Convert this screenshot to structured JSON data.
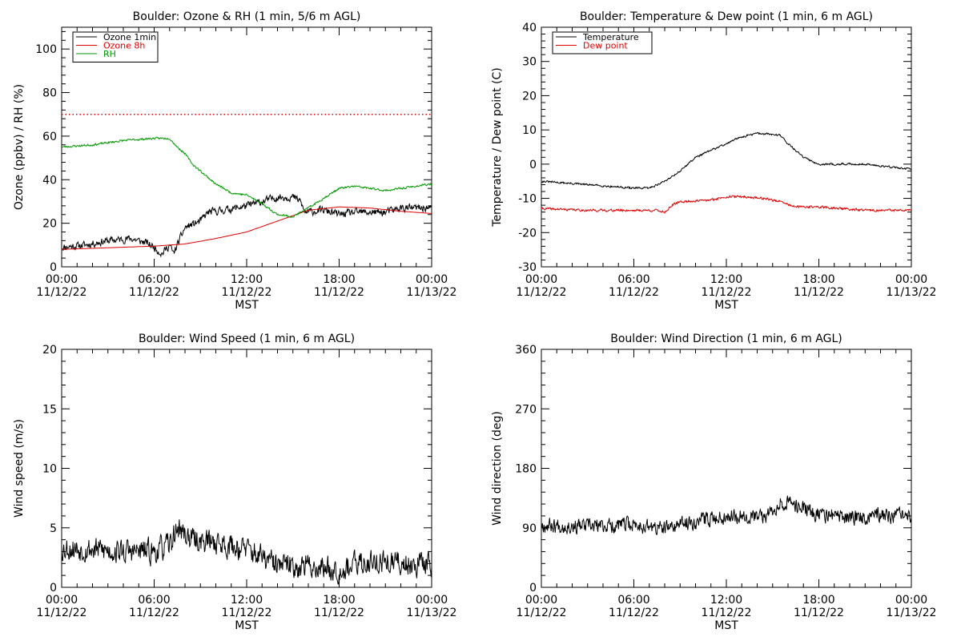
{
  "chart_data": [
    {
      "type": "line",
      "title": "Boulder: Ozone & RH (1 min, 5/6 m AGL)",
      "xlabel": "MST",
      "ylabel": "Ozone (ppbv) / RH (%)",
      "xlim": [
        "11/12/22 00:00",
        "11/13/22 00:00"
      ],
      "ylim": [
        0,
        110
      ],
      "xticks": [
        {
          "time": "00:00",
          "date": "11/12/22"
        },
        {
          "time": "06:00",
          "date": "11/12/22"
        },
        {
          "time": "12:00",
          "date": "11/12/22"
        },
        {
          "time": "18:00",
          "date": "11/12/22"
        },
        {
          "time": "00:00",
          "date": "11/13/22"
        }
      ],
      "yticks": [
        0,
        20,
        40,
        60,
        80,
        100
      ],
      "legend_position": "top-left",
      "reference_line": {
        "y": 70,
        "color": "#dd0000",
        "style": "dotted"
      },
      "series": [
        {
          "name": "Ozone 1min",
          "color": "#000000",
          "noise": 1.5,
          "seed": 11,
          "points": [
            [
              "00:00",
              9
            ],
            [
              "01:30",
              10
            ],
            [
              "03:00",
              12
            ],
            [
              "04:30",
              13
            ],
            [
              "05:30",
              11
            ],
            [
              "06:00",
              9
            ],
            [
              "06:30",
              6
            ],
            [
              "07:00",
              10
            ],
            [
              "07:15",
              6
            ],
            [
              "07:45",
              14
            ],
            [
              "08:00",
              18
            ],
            [
              "09:00",
              21
            ],
            [
              "09:30",
              25
            ],
            [
              "10:30",
              26
            ],
            [
              "12:00",
              28
            ],
            [
              "13:00",
              30
            ],
            [
              "14:00",
              32
            ],
            [
              "15:00",
              32
            ],
            [
              "15:30",
              30
            ],
            [
              "15:45",
              25
            ],
            [
              "17:00",
              26
            ],
            [
              "18:00",
              24
            ],
            [
              "19:00",
              25
            ],
            [
              "21:00",
              25
            ],
            [
              "22:00",
              27
            ],
            [
              "24:00",
              27
            ]
          ]
        },
        {
          "name": "Ozone 8h",
          "color": "#dd0000",
          "noise": 0,
          "seed": 0,
          "points": [
            [
              "00:00",
              8
            ],
            [
              "04:00",
              9
            ],
            [
              "06:00",
              9.5
            ],
            [
              "08:00",
              10.5
            ],
            [
              "10:00",
              13
            ],
            [
              "12:00",
              16
            ],
            [
              "14:00",
              21
            ],
            [
              "16:00",
              26
            ],
            [
              "18:00",
              27.5
            ],
            [
              "20:00",
              27
            ],
            [
              "22:00",
              25.5
            ],
            [
              "24:00",
              24.5
            ]
          ]
        },
        {
          "name": "RH",
          "color": "#009900",
          "noise": 0.4,
          "seed": 23,
          "points": [
            [
              "00:00",
              55
            ],
            [
              "02:00",
              56
            ],
            [
              "04:00",
              58
            ],
            [
              "06:00",
              59
            ],
            [
              "07:00",
              59
            ],
            [
              "07:30",
              55
            ],
            [
              "08:00",
              52
            ],
            [
              "08:30",
              47
            ],
            [
              "10:00",
              38
            ],
            [
              "11:00",
              34
            ],
            [
              "12:00",
              33
            ],
            [
              "13:00",
              29
            ],
            [
              "14:00",
              24
            ],
            [
              "15:00",
              23
            ],
            [
              "16:00",
              27
            ],
            [
              "18:00",
              36
            ],
            [
              "19:00",
              37
            ],
            [
              "20:00",
              36
            ],
            [
              "21:00",
              35
            ],
            [
              "22:00",
              36
            ],
            [
              "24:00",
              38
            ]
          ]
        }
      ]
    },
    {
      "type": "line",
      "title": "Boulder: Temperature & Dew point (1 min, 6 m AGL)",
      "xlabel": "MST",
      "ylabel": "Temperature / Dew point (C)",
      "xlim": [
        "11/12/22 00:00",
        "11/13/22 00:00"
      ],
      "ylim": [
        -30,
        40
      ],
      "xticks": [
        {
          "time": "00:00",
          "date": "11/12/22"
        },
        {
          "time": "06:00",
          "date": "11/12/22"
        },
        {
          "time": "12:00",
          "date": "11/12/22"
        },
        {
          "time": "18:00",
          "date": "11/12/22"
        },
        {
          "time": "00:00",
          "date": "11/13/22"
        }
      ],
      "yticks": [
        -30,
        -20,
        -10,
        0,
        10,
        20,
        30,
        40
      ],
      "legend_position": "top-left",
      "series": [
        {
          "name": "Temperature",
          "color": "#000000",
          "noise": 0.25,
          "seed": 31,
          "points": [
            [
              "00:00",
              -5
            ],
            [
              "03:00",
              -6
            ],
            [
              "06:00",
              -7
            ],
            [
              "07:00",
              -7
            ],
            [
              "08:00",
              -5
            ],
            [
              "09:00",
              -2
            ],
            [
              "10:00",
              2
            ],
            [
              "11:00",
              4
            ],
            [
              "12:00",
              6
            ],
            [
              "13:00",
              8
            ],
            [
              "14:00",
              9
            ],
            [
              "15:30",
              8.5
            ],
            [
              "16:00",
              6
            ],
            [
              "17:00",
              2
            ],
            [
              "18:00",
              0
            ],
            [
              "21:00",
              0
            ],
            [
              "22:00",
              -0.5
            ],
            [
              "24:00",
              -1.5
            ]
          ]
        },
        {
          "name": "Dew point",
          "color": "#dd0000",
          "noise": 0.3,
          "seed": 41,
          "points": [
            [
              "00:00",
              -13
            ],
            [
              "03:00",
              -13.5
            ],
            [
              "06:00",
              -13.5
            ],
            [
              "07:30",
              -13.5
            ],
            [
              "08:00",
              -14
            ],
            [
              "08:30",
              -12
            ],
            [
              "09:00",
              -11
            ],
            [
              "11:00",
              -10.5
            ],
            [
              "12:00",
              -9.5
            ],
            [
              "13:00",
              -9.5
            ],
            [
              "14:30",
              -10
            ],
            [
              "15:30",
              -11
            ],
            [
              "16:30",
              -12.5
            ],
            [
              "18:00",
              -12.5
            ],
            [
              "21:00",
              -13.5
            ],
            [
              "24:00",
              -13.5
            ]
          ]
        }
      ]
    },
    {
      "type": "line",
      "title": "Boulder: Wind Speed (1 min, 6 m AGL)",
      "xlabel": "MST",
      "ylabel": "Wind speed (m/s)",
      "xlim": [
        "11/12/22 00:00",
        "11/13/22 00:00"
      ],
      "ylim": [
        0,
        20
      ],
      "xticks": [
        {
          "time": "00:00",
          "date": "11/12/22"
        },
        {
          "time": "06:00",
          "date": "11/12/22"
        },
        {
          "time": "12:00",
          "date": "11/12/22"
        },
        {
          "time": "18:00",
          "date": "11/12/22"
        },
        {
          "time": "00:00",
          "date": "11/13/22"
        }
      ],
      "yticks": [
        0,
        5,
        10,
        15,
        20
      ],
      "series": [
        {
          "name": "",
          "color": "#000000",
          "noise": 0.9,
          "seed": 53,
          "points": [
            [
              "00:00",
              3.3
            ],
            [
              "02:00",
              3.2
            ],
            [
              "04:00",
              3
            ],
            [
              "06:00",
              3
            ],
            [
              "07:00",
              3.5
            ],
            [
              "07:30",
              5
            ],
            [
              "08:30",
              4
            ],
            [
              "10:00",
              3.8
            ],
            [
              "12:00",
              3.2
            ],
            [
              "14:00",
              1.8
            ],
            [
              "16:00",
              1.8
            ],
            [
              "18:00",
              1.5
            ],
            [
              "20:00",
              2.2
            ],
            [
              "22:00",
              2
            ],
            [
              "24:00",
              2
            ]
          ]
        }
      ]
    },
    {
      "type": "line",
      "title": "Boulder: Wind Direction (1 min, 6 m AGL)",
      "xlabel": "MST",
      "ylabel": "Wind direction (deg)",
      "xlim": [
        "11/12/22 00:00",
        "11/13/22 00:00"
      ],
      "ylim": [
        0,
        360
      ],
      "xticks": [
        {
          "time": "00:00",
          "date": "11/12/22"
        },
        {
          "time": "06:00",
          "date": "11/12/22"
        },
        {
          "time": "12:00",
          "date": "11/12/22"
        },
        {
          "time": "18:00",
          "date": "11/12/22"
        },
        {
          "time": "00:00",
          "date": "11/13/22"
        }
      ],
      "yticks": [
        0,
        90,
        180,
        270,
        360
      ],
      "series": [
        {
          "name": "",
          "color": "#000000",
          "noise": 10,
          "seed": 67,
          "points": [
            [
              "00:00",
              95
            ],
            [
              "03:00",
              92
            ],
            [
              "06:00",
              95
            ],
            [
              "08:00",
              88
            ],
            [
              "09:00",
              95
            ],
            [
              "11:00",
              105
            ],
            [
              "13:00",
              110
            ],
            [
              "14:30",
              105
            ],
            [
              "15:30",
              130
            ],
            [
              "16:30",
              125
            ],
            [
              "18:00",
              110
            ],
            [
              "20:00",
              105
            ],
            [
              "22:00",
              110
            ],
            [
              "24:00",
              105
            ]
          ]
        }
      ]
    }
  ]
}
